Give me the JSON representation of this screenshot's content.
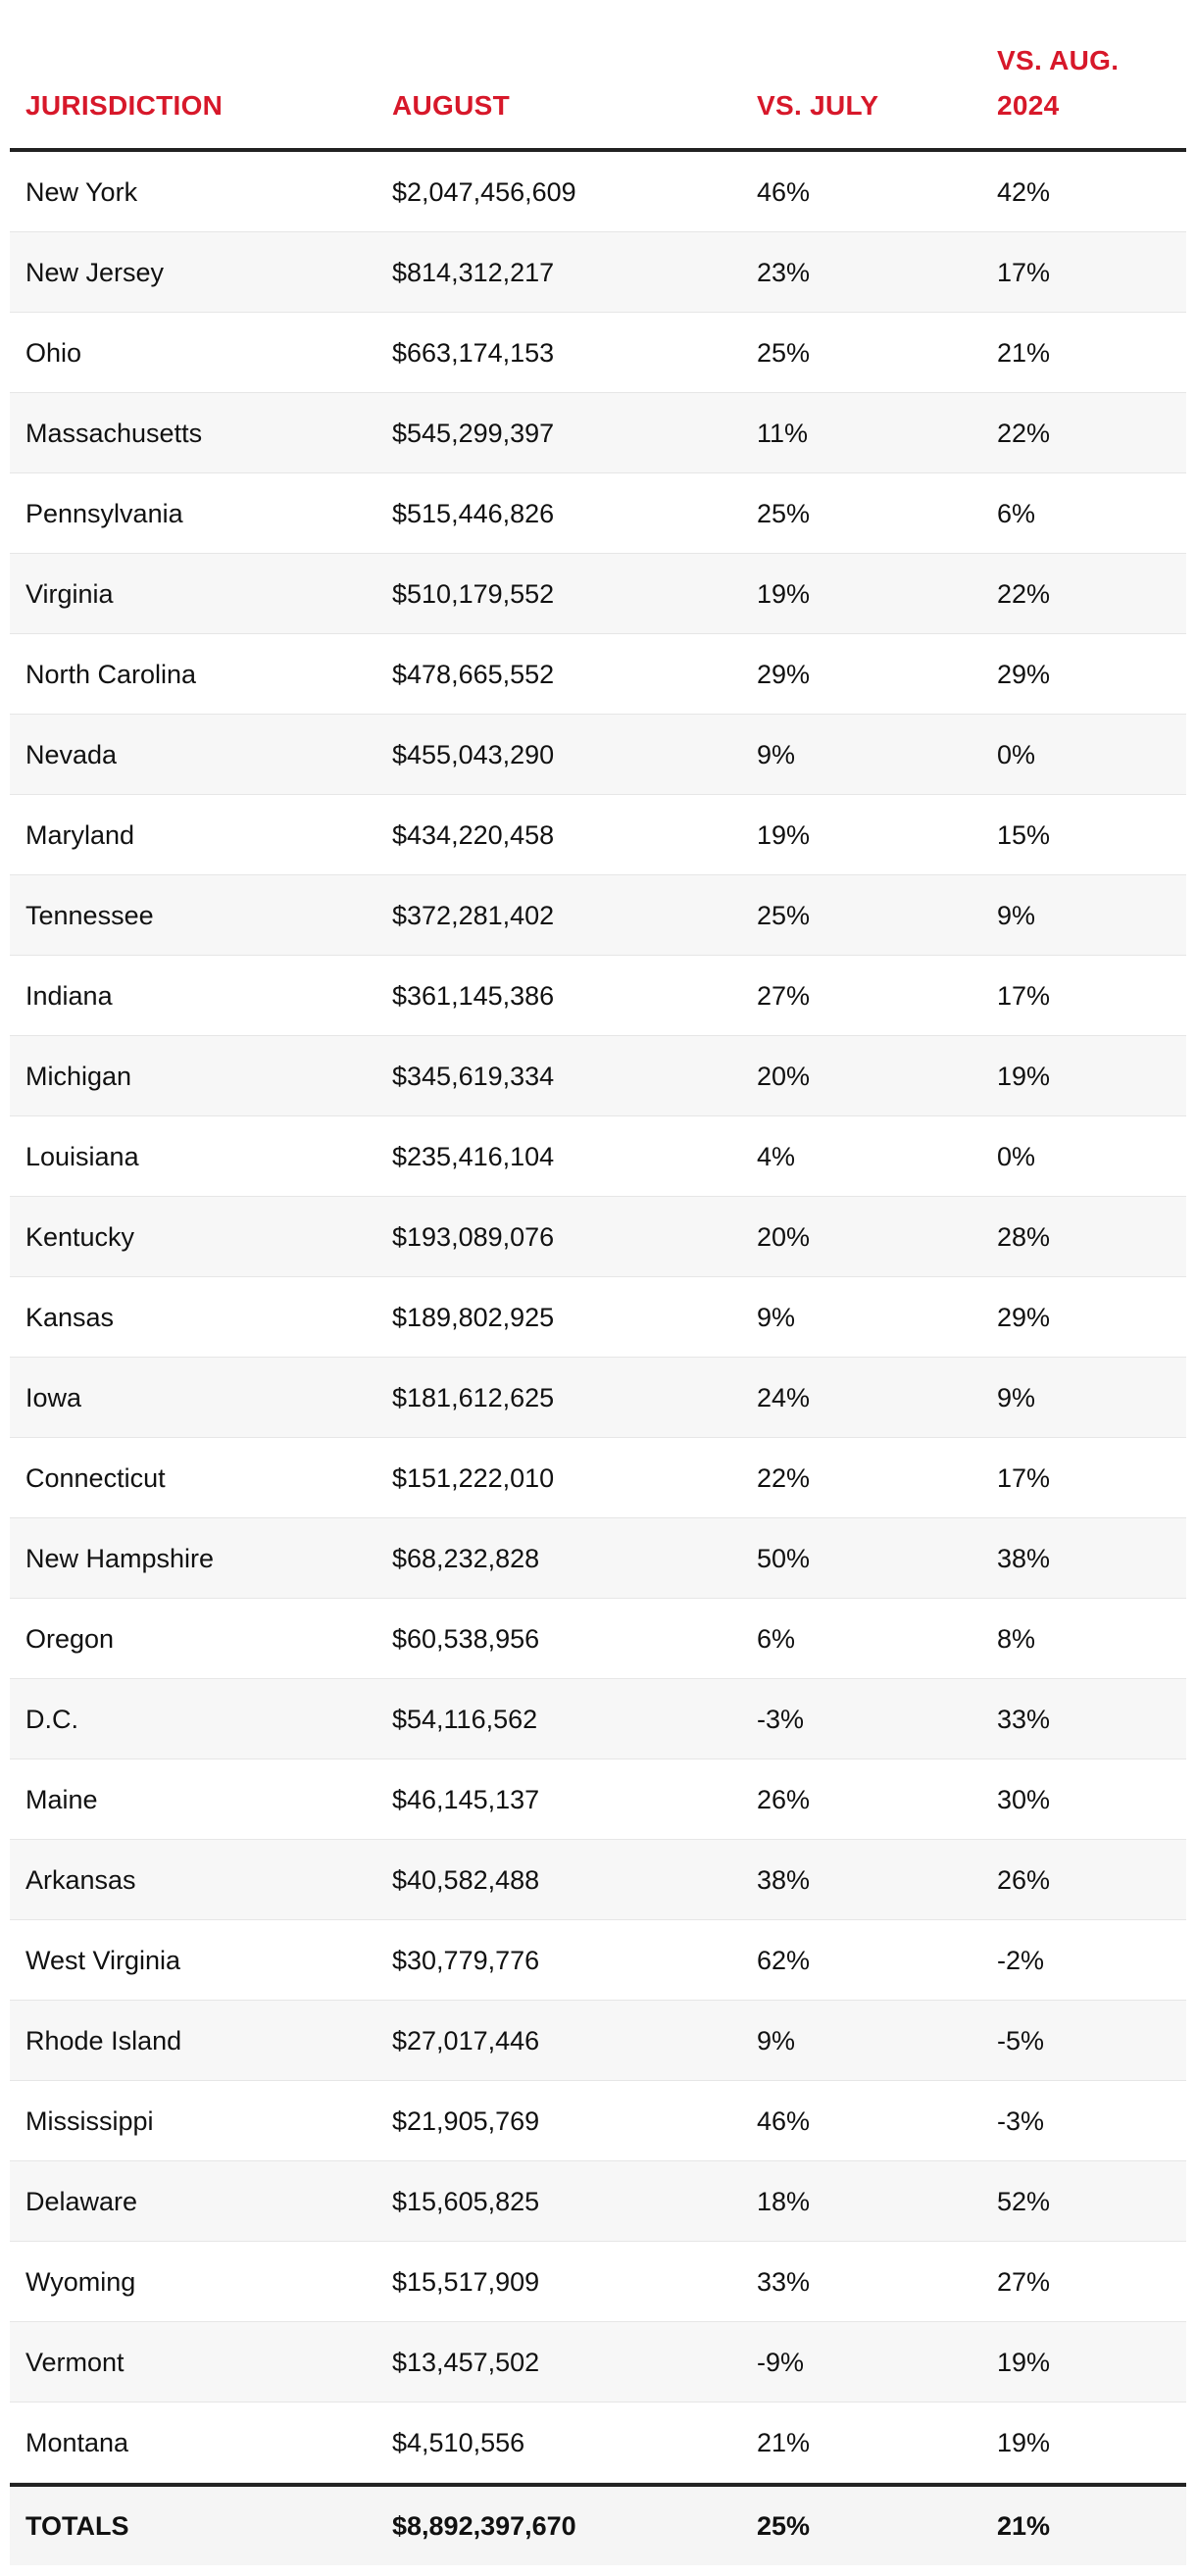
{
  "headers": {
    "jurisdiction": "JURISDICTION",
    "august": "AUGUST",
    "vs_july": "VS. JULY",
    "vs_aug_2024": "VS. AUG. 2024"
  },
  "rows": [
    {
      "jurisdiction": "New York",
      "august": "$2,047,456,609",
      "vs_july": "46%",
      "vs_aug_2024": "42%"
    },
    {
      "jurisdiction": "New Jersey",
      "august": "$814,312,217",
      "vs_july": "23%",
      "vs_aug_2024": "17%"
    },
    {
      "jurisdiction": "Ohio",
      "august": "$663,174,153",
      "vs_july": "25%",
      "vs_aug_2024": "21%"
    },
    {
      "jurisdiction": "Massachusetts",
      "august": "$545,299,397",
      "vs_july": "11%",
      "vs_aug_2024": "22%"
    },
    {
      "jurisdiction": "Pennsylvania",
      "august": "$515,446,826",
      "vs_july": "25%",
      "vs_aug_2024": "6%"
    },
    {
      "jurisdiction": "Virginia",
      "august": "$510,179,552",
      "vs_july": "19%",
      "vs_aug_2024": "22%"
    },
    {
      "jurisdiction": "North Carolina",
      "august": "$478,665,552",
      "vs_july": "29%",
      "vs_aug_2024": "29%"
    },
    {
      "jurisdiction": "Nevada",
      "august": "$455,043,290",
      "vs_july": "9%",
      "vs_aug_2024": "0%"
    },
    {
      "jurisdiction": "Maryland",
      "august": "$434,220,458",
      "vs_july": "19%",
      "vs_aug_2024": "15%"
    },
    {
      "jurisdiction": "Tennessee",
      "august": "$372,281,402",
      "vs_july": "25%",
      "vs_aug_2024": "9%"
    },
    {
      "jurisdiction": "Indiana",
      "august": "$361,145,386",
      "vs_july": "27%",
      "vs_aug_2024": "17%"
    },
    {
      "jurisdiction": "Michigan",
      "august": "$345,619,334",
      "vs_july": "20%",
      "vs_aug_2024": "19%"
    },
    {
      "jurisdiction": "Louisiana",
      "august": "$235,416,104",
      "vs_july": "4%",
      "vs_aug_2024": "0%"
    },
    {
      "jurisdiction": "Kentucky",
      "august": "$193,089,076",
      "vs_july": "20%",
      "vs_aug_2024": "28%"
    },
    {
      "jurisdiction": "Kansas",
      "august": "$189,802,925",
      "vs_july": "9%",
      "vs_aug_2024": "29%"
    },
    {
      "jurisdiction": "Iowa",
      "august": "$181,612,625",
      "vs_july": "24%",
      "vs_aug_2024": "9%"
    },
    {
      "jurisdiction": "Connecticut",
      "august": "$151,222,010",
      "vs_july": "22%",
      "vs_aug_2024": "17%"
    },
    {
      "jurisdiction": "New Hampshire",
      "august": "$68,232,828",
      "vs_july": "50%",
      "vs_aug_2024": "38%"
    },
    {
      "jurisdiction": "Oregon",
      "august": "$60,538,956",
      "vs_july": "6%",
      "vs_aug_2024": "8%"
    },
    {
      "jurisdiction": "D.C.",
      "august": "$54,116,562",
      "vs_july": "-3%",
      "vs_aug_2024": "33%"
    },
    {
      "jurisdiction": "Maine",
      "august": "$46,145,137",
      "vs_july": "26%",
      "vs_aug_2024": "30%"
    },
    {
      "jurisdiction": "Arkansas",
      "august": "$40,582,488",
      "vs_july": "38%",
      "vs_aug_2024": "26%"
    },
    {
      "jurisdiction": "West Virginia",
      "august": "$30,779,776",
      "vs_july": "62%",
      "vs_aug_2024": "-2%"
    },
    {
      "jurisdiction": "Rhode Island",
      "august": "$27,017,446",
      "vs_july": "9%",
      "vs_aug_2024": "-5%"
    },
    {
      "jurisdiction": "Mississippi",
      "august": "$21,905,769",
      "vs_july": "46%",
      "vs_aug_2024": "-3%"
    },
    {
      "jurisdiction": "Delaware",
      "august": "$15,605,825",
      "vs_july": "18%",
      "vs_aug_2024": "52%"
    },
    {
      "jurisdiction": "Wyoming",
      "august": "$15,517,909",
      "vs_july": "33%",
      "vs_aug_2024": "27%"
    },
    {
      "jurisdiction": "Vermont",
      "august": "$13,457,502",
      "vs_july": "-9%",
      "vs_aug_2024": "19%"
    },
    {
      "jurisdiction": "Montana",
      "august": "$4,510,556",
      "vs_july": "21%",
      "vs_aug_2024": "19%"
    }
  ],
  "totals": {
    "label": "TOTALS",
    "august": "$8,892,397,670",
    "vs_july": "25%",
    "vs_aug_2024": "21%"
  },
  "colors": {
    "header_text": "#d7182a",
    "alt_row_bg": "#f7f7f7",
    "rule": "#222222"
  }
}
